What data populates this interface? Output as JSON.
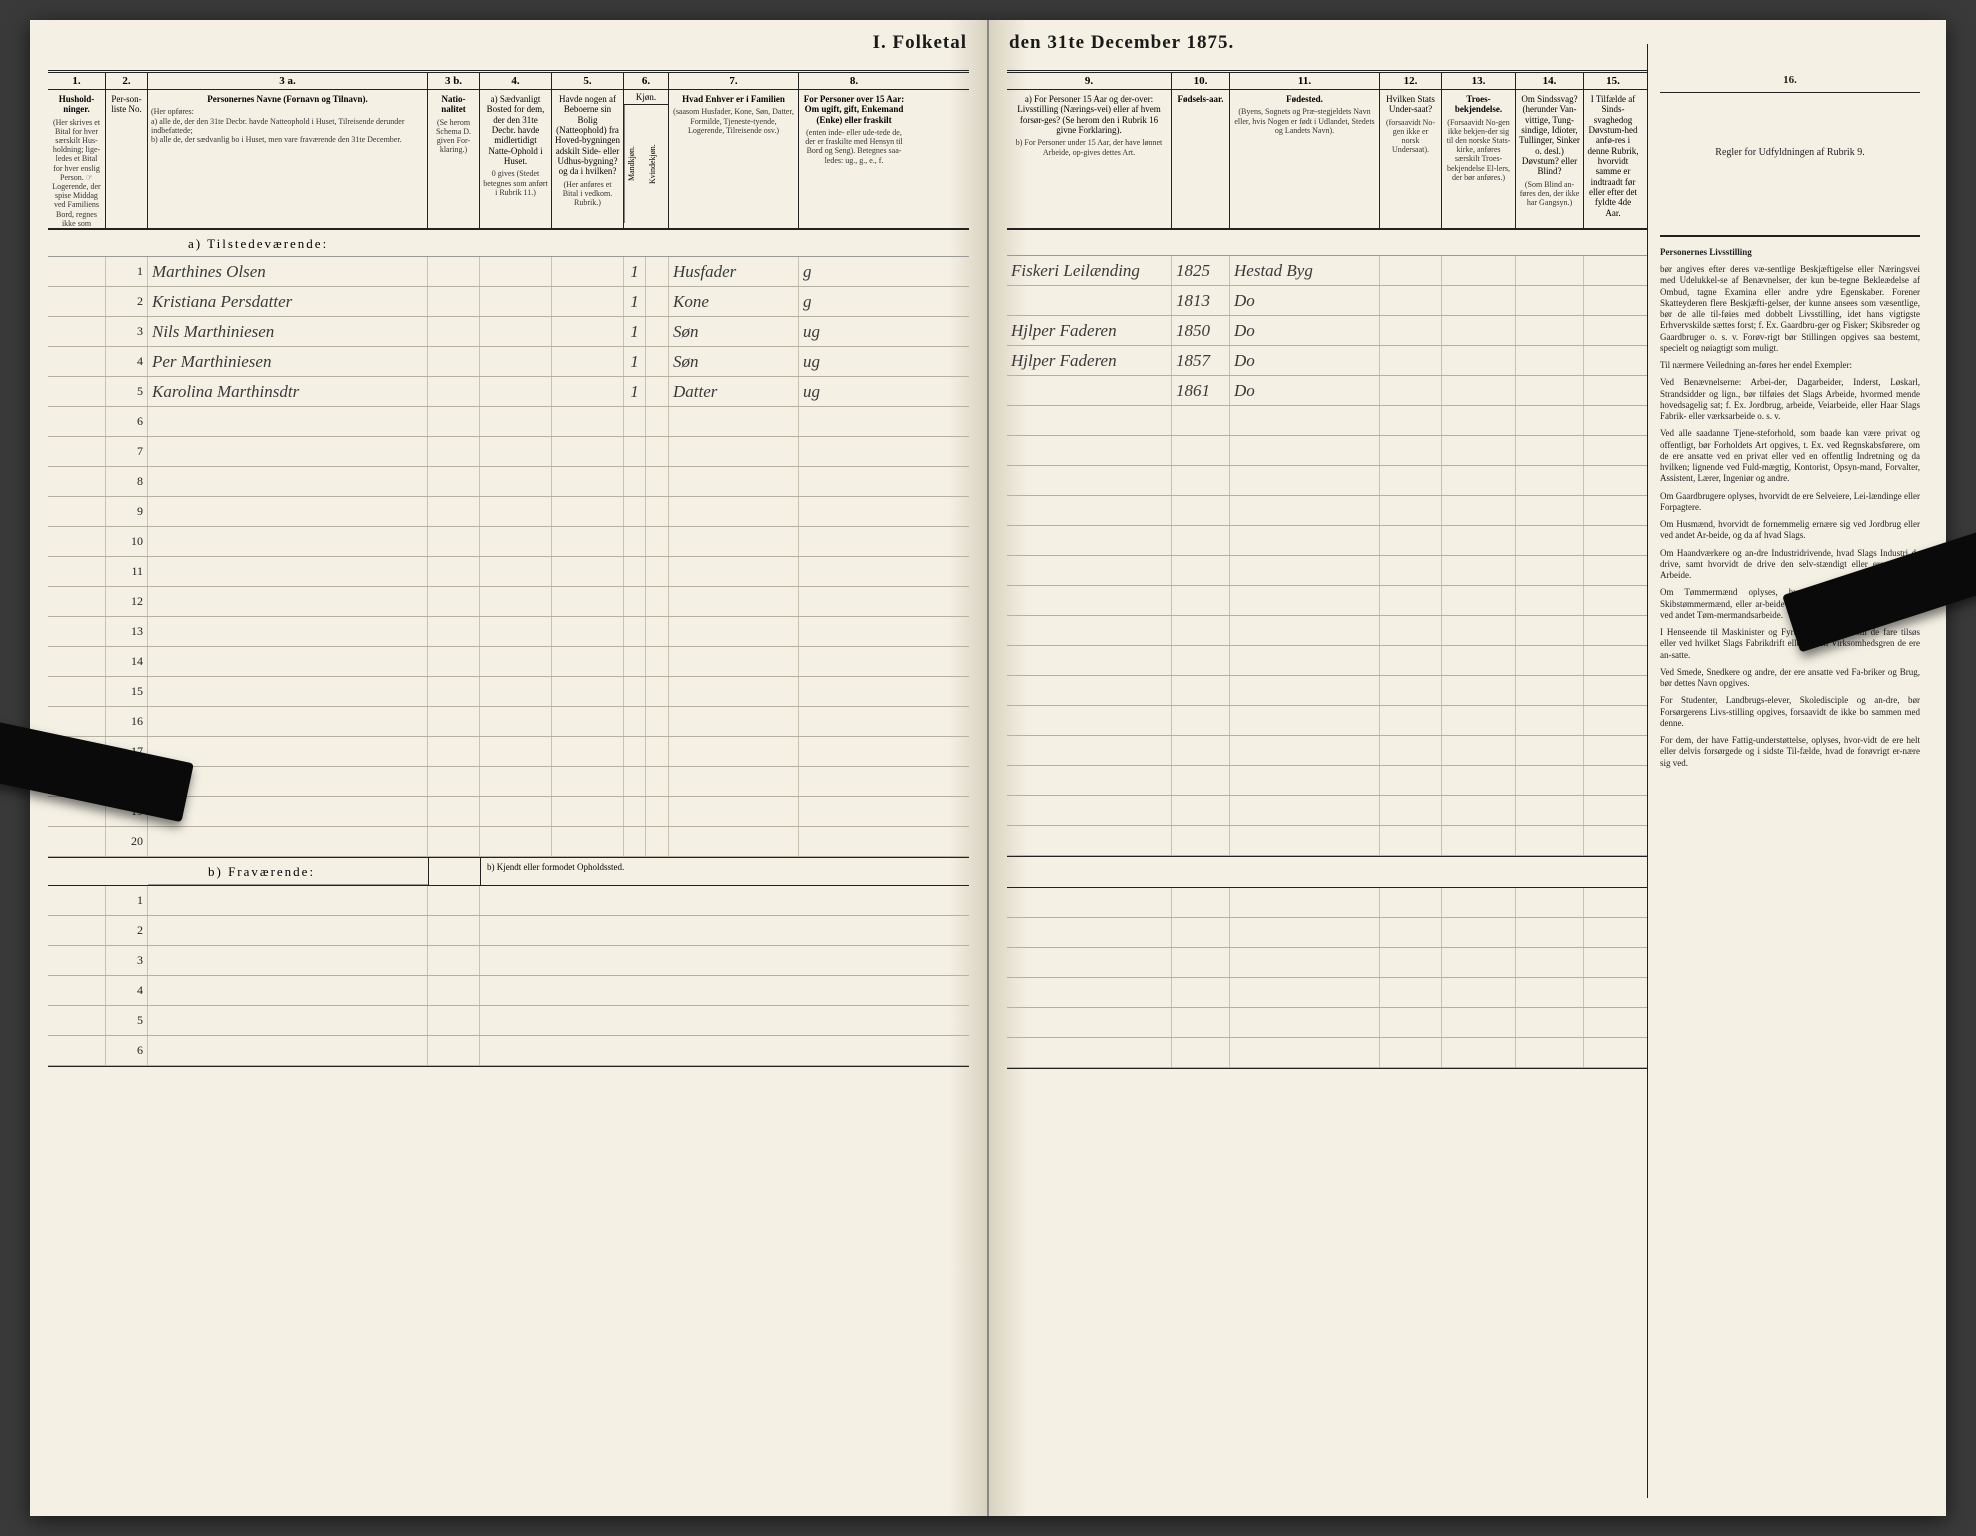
{
  "title_left": "I.  Folketal",
  "title_right": "den 31te December 1875.",
  "columns_left": {
    "nums": [
      "1.",
      "2.",
      "3 a.",
      "3 b.",
      "4.",
      "5.",
      "6.",
      "7.",
      "8."
    ],
    "h1": "Hushold-ninger.",
    "h1_sub": "(Her skrives et Bital for hver særskilt Hus-holdning; lige-ledes et Bital for hver enslig Person. ☞ Logerende, der spise Middag ved Familiens Bord, regnes ikke som enslige.)",
    "h2": "Per-son-liste No.",
    "h3a": "Personernes Navne (Fornavn og Tilnavn).",
    "h3a_sub": "(Her opføres:\na) alle de, der den 31te Decbr. havde Natteophold i Huset, Tilreisende derunder indbefattede;\nb) alle de, der sædvanlig bo i Huset, men vare fraværende den 31te December.",
    "h3b": "Natio-nalitet",
    "h3b_sub": "(Se herom Schema D. given For-klaring.)",
    "h4": "a) Sædvanligt Bosted for dem, der den 31te Decbr. havde midlertidigt Natte-Ophold i Huset.",
    "h4_sub": "0 gives (Stedet betegnes som anført i Rubrik 11.)",
    "h5": "Havde nogen af Beboerne sin Bolig (Natteophold) fra Hoved-bygningen adskilt Side- eller Udhus-bygning? og da i hvilken?",
    "h5_sub": "(Her anføres et Bital i vedkom. Rubrik.)",
    "h6": "Kjøn.",
    "h6_m": "Mandkjøn.",
    "h6_k": "Kvindekjøn.",
    "h7": "Hvad Enhver er i Familien",
    "h7_sub": "(saasom Husfader, Kone, Søn, Datter, Formilde, Tjeneste-tyende, Logerende, Tilreisende osv.)",
    "h8": "For Personer over 15 Aar: Om ugift, gift, Enkemand (Enke) eller fraskilt",
    "h8_sub": "(enten inde- eller ude-tede de, der er fraskilte med Hensyn til Bord og Seng). Betegnes saa-ledes: ug., g., e., f."
  },
  "columns_right": {
    "nums": [
      "9.",
      "10.",
      "11.",
      "12.",
      "13.",
      "14.",
      "15.",
      "16."
    ],
    "h9": "a) For Personer 15 Aar og der-over: Livsstilling (Nærings-vei) eller af hvem forsør-ges? (Se herom den i Rubrik 16 givne Forklaring).",
    "h9_sub": "b) For Personer under 15 Aar, der have lønnet Arbeide, op-gives dettes Art.",
    "h10": "Fødsels-aar.",
    "h11": "Fødested.",
    "h11_sub": "(Byens, Sognets og Præ-stegjeldets Navn eller, hvis Nogen er født i Udlandet, Stedets og Landets Navn).",
    "h12": "Hvilken Stats Under-saat?",
    "h12_sub": "(forsaavidt No-gen ikke er norsk Undersaat).",
    "h13": "Troes-bekjendelse.",
    "h13_sub": "(Forsaavidt No-gen ikke bekjen-der sig til den norske Stats-kirke, anføres særskilt Troes-bekjendelse El-lers, der bør anføres.)",
    "h14": "Om Sindssvag? (herunder Van-vittige, Tung-sindige, Idioter, Tullinger, Sinker o. desl.) Døvstum? eller Blind?",
    "h14_sub": "(Som Blind an-føres den, der ikke har Gangsyn.)",
    "h15": "I Tilfælde af Sinds-svaghedog Døvstum-hed anfø-res i denne Rubrik, hvorvidt samme er indtraadt før eller efter det fyldte 4de Aar.",
    "h16": "Regler for Udfyldningen af Rubrik 9."
  },
  "section_a": "a)  Tilstedeværende:",
  "section_b": "b)  Fraværende:",
  "section_b_note": "b) Kjendt eller formodet Opholdssted.",
  "rows_a": [
    {
      "n": "1",
      "name": "Marthines Olsen",
      "k": "1",
      "fam": "Husfader",
      "civ": "g",
      "occ": "Fiskeri Leilænding",
      "year": "1825",
      "birth": "Hestad Byg"
    },
    {
      "n": "2",
      "name": "Kristiana Persdatter",
      "k": "1",
      "fam": "Kone",
      "civ": "g",
      "occ": "",
      "year": "1813",
      "birth": "Do"
    },
    {
      "n": "3",
      "name": "Nils Marthiniesen",
      "k": "1",
      "fam": "Søn",
      "civ": "ug",
      "occ": "Hjlper Faderen",
      "year": "1850",
      "birth": "Do"
    },
    {
      "n": "4",
      "name": "Per Marthiniesen",
      "k": "1",
      "fam": "Søn",
      "civ": "ug",
      "occ": "Hjlper Faderen",
      "year": "1857",
      "birth": "Do"
    },
    {
      "n": "5",
      "name": "Karolina Marthinsdtr",
      "k": "1",
      "fam": "Datter",
      "civ": "ug",
      "occ": "",
      "year": "1861",
      "birth": "Do"
    },
    {
      "n": "6"
    },
    {
      "n": "7"
    },
    {
      "n": "8"
    },
    {
      "n": "9"
    },
    {
      "n": "10"
    },
    {
      "n": "11"
    },
    {
      "n": "12"
    },
    {
      "n": "13"
    },
    {
      "n": "14"
    },
    {
      "n": "15"
    },
    {
      "n": "16"
    },
    {
      "n": "17"
    },
    {
      "n": "18"
    },
    {
      "n": "19"
    },
    {
      "n": "20"
    }
  ],
  "rows_b": [
    {
      "n": "1"
    },
    {
      "n": "2"
    },
    {
      "n": "3"
    },
    {
      "n": "4"
    },
    {
      "n": "5"
    },
    {
      "n": "6"
    }
  ],
  "rules_title": "Personernes Livsstilling",
  "rules_paras": [
    "bør angives efter deres væ-sentlige Beskjæftigelse eller Næringsvei med Udelukkel-se af Benævnelser, der kun be-tegne Bekleædelse af Ombud, tagne Examina eller andre ydre Egenskaber. Forener Skatteyderen flere Beskjæfti-gelser, der kunne ansees som væsentlige, bør de alle til-føies med dobbelt Livsstilling, idet hans vigtigste Erhvervskilde sættes forst; f. Ex. Gaardbru-ger og Fisker; Skibsreder og Gaardbruger o. s. v. Forøv-rigt bør Stillingen opgives saa bestemt, specielt og nøiagtigt som muligt.",
    "Til nærmere Veiledning an-føres her endel Exempler:",
    "Ved Benævnelserne: Arbei-der, Dagarbeider, Inderst, Løskarl, Strandsidder og lign., bør tilføies det Slags Arbeide, hvormed mende hovedsagelig sat; f. Ex. Jordbrug, arbeide, Veiarbeide, eller Haar Slags Fabrik- eller værksarbeide o. s. v.",
    "Ved alle saadanne Tjene-steforhold, som baade kan være privat og offentligt, bør Forholdets Art opgives, t. Ex. ved Regnskabsførere, om de ere ansatte ved en privat eller ved en offentlig Indretning og da hvilken; lignende ved Fuld-mægtig, Kontorist, Opsyn-mand, Forvalter, Assistent, Lærer, Ingeniør og andre.",
    "Om Gaardbrugere oplyses, hvorvidt de ere Selveiere, Lei-lændinge eller Forpagtere.",
    "Om Husmænd, hvorvidt de fornemmelig ernære sig ved Jordbrug eller ved andet Ar-beide, og da af hvad Slags.",
    "Om Haandværkere og an-dre Industridrivende, hvad Slags Industri de drive, samt hvorvidt de drive den selv-stændigt eller ere i andres Arbeide.",
    "Om Tømmermænd oplyses, hvorvidt de fare tilsøs som Skibstømmermænd, eller ar-beide paa Skibsværfter, eller beskjæftiges ved andet Tøm-mermandsarbeide.",
    "I Henseende til Maskinister og Fyrbødere oplyses, om de fare tilsøs eller ved hvilket Slags Fabrikdrift eller anden Virksomhedsgren de ere an-satte.",
    "Ved Smede, Snedkere og andre, der ere ansatte ved Fa-briker og Brug, bør dettes Navn opgives.",
    "For Studenter, Landbrugs-elever, Skoledisciple og an-dre, bør Forsørgerens Livs-stilling opgives, forsaavidt de ikke bo sammen med denne.",
    "For dem, der have Fattig-understøttelse, oplyses, hvor-vidt de ere helt eller delvis forsørgede og i sidste Til-fælde, hvad de forøvrigt er-nære sig ved."
  ]
}
